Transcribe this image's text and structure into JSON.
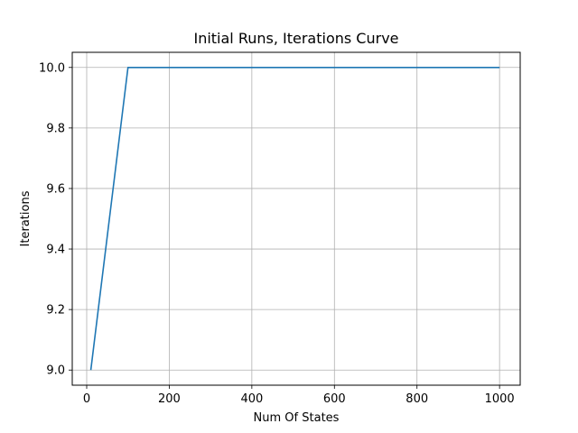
{
  "chart_data": {
    "type": "line",
    "title": "Initial Runs, Iterations Curve",
    "xlabel": "Num Of States",
    "ylabel": "Iterations",
    "xlim": [
      -35,
      1050
    ],
    "ylim": [
      8.95,
      10.05
    ],
    "xticks": [
      0,
      200,
      400,
      600,
      800,
      1000
    ],
    "yticks": [
      9.0,
      9.2,
      9.4,
      9.6,
      9.8,
      10.0
    ],
    "ytick_labels": [
      "9.0",
      "9.2",
      "9.4",
      "9.6",
      "9.8",
      "10.0"
    ],
    "grid": true,
    "series": [
      {
        "color": "#1f77b4",
        "x": [
          10,
          100,
          1000
        ],
        "y": [
          9.0,
          10.0,
          10.0
        ]
      }
    ]
  }
}
